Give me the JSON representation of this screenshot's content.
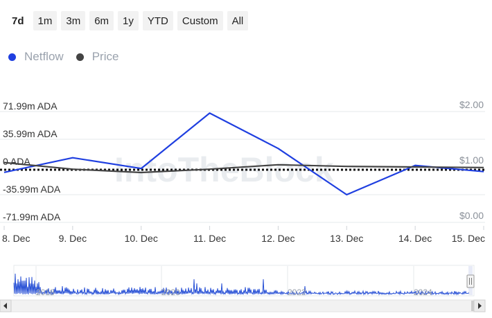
{
  "range_selector": {
    "buttons": [
      "7d",
      "1m",
      "3m",
      "6m",
      "1y",
      "YTD",
      "Custom",
      "All"
    ],
    "active": "7d"
  },
  "legend": [
    {
      "name": "Netflow",
      "color": "#1f3fe0"
    },
    {
      "name": "Price",
      "color": "#444444"
    }
  ],
  "watermark": "IntoTheBlock",
  "navigator": {
    "year_labels": [
      "2018",
      "2020",
      "2022",
      "2024"
    ],
    "scroll_left_icon": "arrow-left-icon",
    "scroll_right_icon": "arrow-right-icon",
    "handle_icon": "grip-handle-icon"
  },
  "chart_data": {
    "type": "line",
    "categories": [
      "8. Dec",
      "9. Dec",
      "10. Dec",
      "11. Dec",
      "12. Dec",
      "13. Dec",
      "14. Dec",
      "15. Dec"
    ],
    "series": [
      {
        "name": "Netflow",
        "axis": "left",
        "color": "#1f3fe0",
        "values": [
          -7,
          12,
          -2,
          70,
          24,
          -36,
          2,
          -6
        ]
      },
      {
        "name": "Price",
        "axis": "right",
        "color": "#444444",
        "values": [
          1.08,
          0.96,
          0.9,
          0.96,
          1.04,
          1.01,
          1.0,
          0.99
        ]
      }
    ],
    "left_axis": {
      "ticks": [
        71.99,
        35.99,
        0,
        -35.99,
        -71.99
      ],
      "tick_labels": [
        "71.99m ADA",
        "35.99m ADA",
        "0 ADA",
        "-35.99m ADA",
        "-71.99m ADA"
      ],
      "range": [
        -71.99,
        71.99
      ]
    },
    "right_axis": {
      "ticks": [
        2.0,
        1.0,
        0.0
      ],
      "tick_labels": [
        "$2.00",
        "$1.00",
        "$0.00"
      ],
      "range": [
        0,
        2
      ]
    },
    "zero_line": "dotted",
    "grid": true,
    "legend_position": "top-left"
  }
}
